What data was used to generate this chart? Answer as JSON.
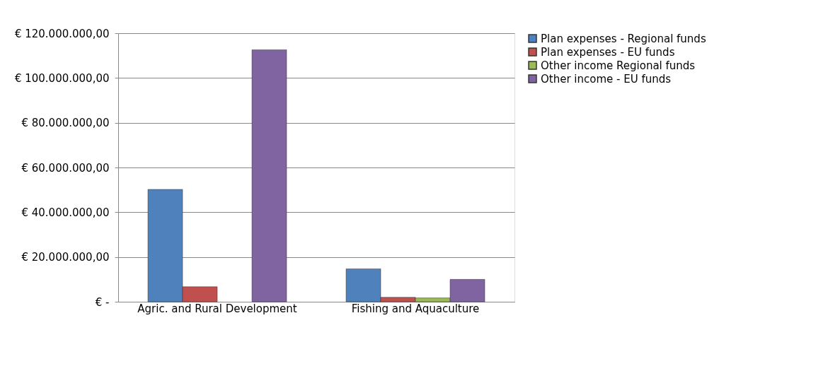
{
  "chart_data": {
    "type": "bar",
    "categories": [
      "Agric. and Rural Development",
      "Fishing and Aquaculture"
    ],
    "series": [
      {
        "name": "Plan expenses - Regional funds",
        "color": "#4f81bd",
        "values": [
          50200000,
          14700000
        ]
      },
      {
        "name": "Plan expenses - EU funds",
        "color": "#c0504d",
        "values": [
          6700000,
          2000000
        ]
      },
      {
        "name": "Other income  Regional funds",
        "color": "#9bbb59",
        "values": [
          null,
          1700000
        ]
      },
      {
        "name": "Other income - EU funds",
        "color": "#8064a2",
        "values": [
          112600000,
          10000000
        ]
      }
    ],
    "ylim": [
      0,
      120000000
    ],
    "yticks": [
      {
        "value": 0,
        "label": "€ -"
      },
      {
        "value": 20000000,
        "label": "€ 20.000.000,00"
      },
      {
        "value": 40000000,
        "label": "€ 40.000.000,00"
      },
      {
        "value": 60000000,
        "label": "€ 60.000.000,00"
      },
      {
        "value": 80000000,
        "label": "€ 80.000.000,00"
      },
      {
        "value": 100000000,
        "label": "€ 100.000.000,00"
      },
      {
        "value": 120000000,
        "label": "€ 120.000.000,00"
      }
    ],
    "grid": "y",
    "legend": "right"
  }
}
